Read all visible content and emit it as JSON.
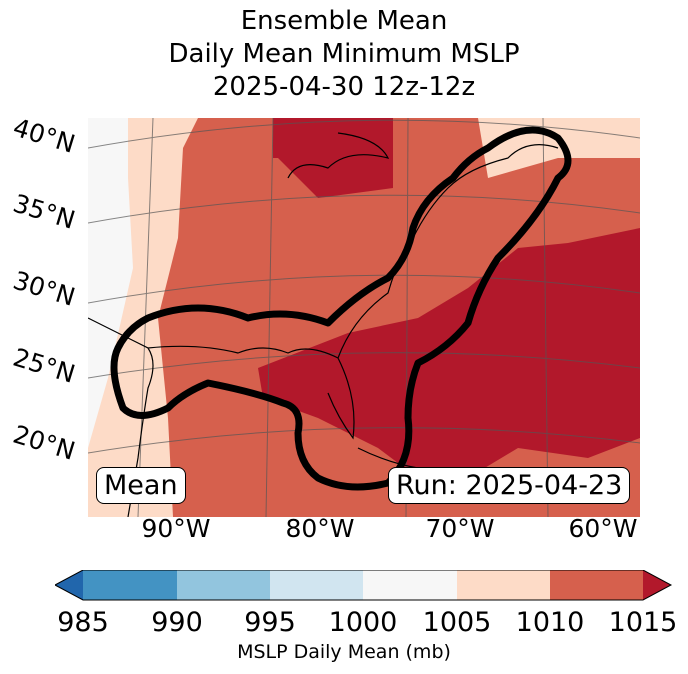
{
  "title": [
    "Ensemble Mean",
    "Daily Mean Minimum MSLP",
    "2025-04-30 12z-12z"
  ],
  "chart_data": {
    "type": "heatmap",
    "title": "Ensemble Mean Daily Mean Minimum MSLP 2025-04-30 12z-12z",
    "lat_labels": [
      "40°N",
      "35°N",
      "30°N",
      "25°N",
      "20°N"
    ],
    "lon_labels": [
      "90°W",
      "80°W",
      "70°W",
      "60°W"
    ],
    "colorbar": {
      "label": "MSLP Daily Mean (mb)",
      "ticks": [
        "985",
        "990",
        "995",
        "1000",
        "1005",
        "1010",
        "1015"
      ],
      "levels": [
        985,
        990,
        995,
        1000,
        1005,
        1010,
        1015
      ],
      "colors": [
        "#2166ac",
        "#4393c3",
        "#92c5de",
        "#d1e5f0",
        "#f7f7f7",
        "#fddbc7",
        "#d6604d",
        "#b2182b"
      ],
      "extend": "both"
    },
    "annotations": {
      "left": "Mean",
      "right": "Run: 2025-04-23"
    }
  }
}
